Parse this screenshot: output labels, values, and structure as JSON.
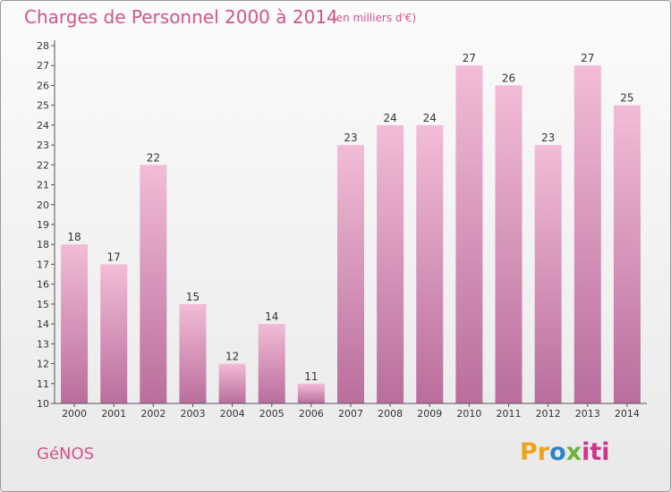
{
  "title": "Charges de Personnel 2000 à 2014",
  "subtitle": "(en milliers d'€)",
  "place": "GéNOS",
  "logo": "Proxiti",
  "colors": {
    "bar_light": "#f2bcd7",
    "bar_dark": "#b96e9c",
    "text_accent": "#d4538d"
  },
  "chart_data": {
    "type": "bar",
    "title": "Charges de Personnel 2000 à 2014",
    "subtitle": "(en milliers d'€)",
    "xlabel": "",
    "ylabel": "",
    "categories": [
      "2000",
      "2001",
      "2002",
      "2003",
      "2004",
      "2005",
      "2006",
      "2007",
      "2008",
      "2009",
      "2010",
      "2011",
      "2012",
      "2013",
      "2014"
    ],
    "values": [
      18,
      17,
      22,
      15,
      12,
      14,
      11,
      23,
      24,
      24,
      27,
      26,
      23,
      27,
      25
    ],
    "ylim": [
      10,
      28
    ],
    "yticks": [
      10,
      11,
      12,
      13,
      14,
      15,
      16,
      17,
      18,
      19,
      20,
      21,
      22,
      23,
      24,
      25,
      26,
      27,
      28
    ],
    "grid": false,
    "legend": "none"
  }
}
